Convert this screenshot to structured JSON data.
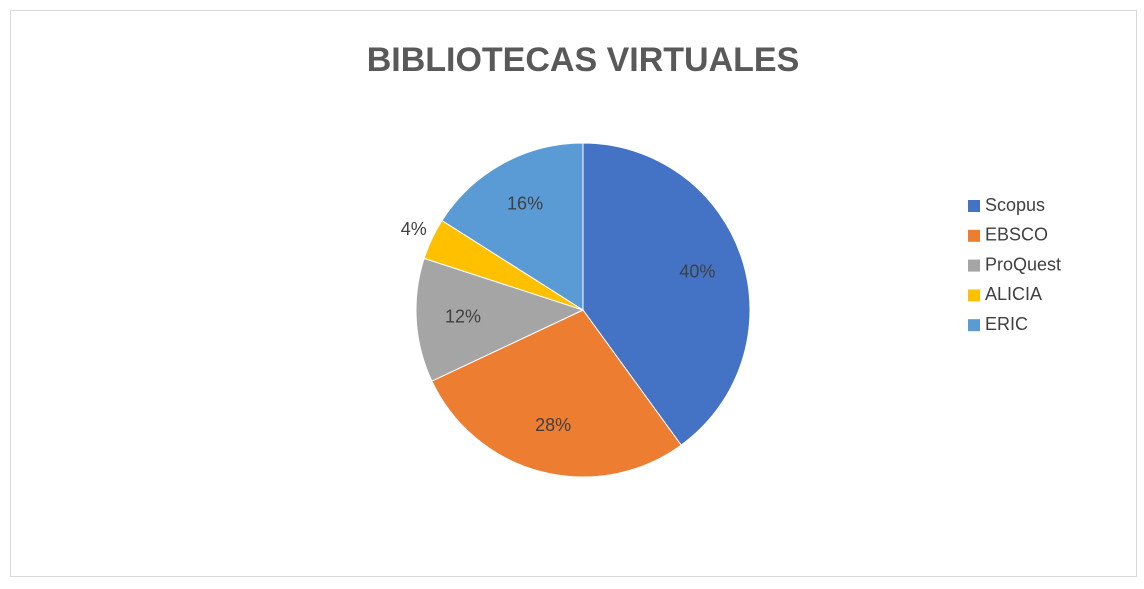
{
  "chart_data": {
    "type": "pie",
    "title": "BIBLIOTECAS VIRTUALES",
    "categories": [
      "Scopus",
      "EBSCO",
      "ProQuest",
      "ALICIA",
      "ERIC"
    ],
    "values": [
      40,
      28,
      12,
      4,
      16
    ],
    "value_labels": [
      "40%",
      "28%",
      "12%",
      "4%",
      "16%"
    ],
    "colors": [
      "#4472c4",
      "#ed7d31",
      "#a5a5a5",
      "#ffc000",
      "#5b9bd5"
    ],
    "legend": "right"
  }
}
